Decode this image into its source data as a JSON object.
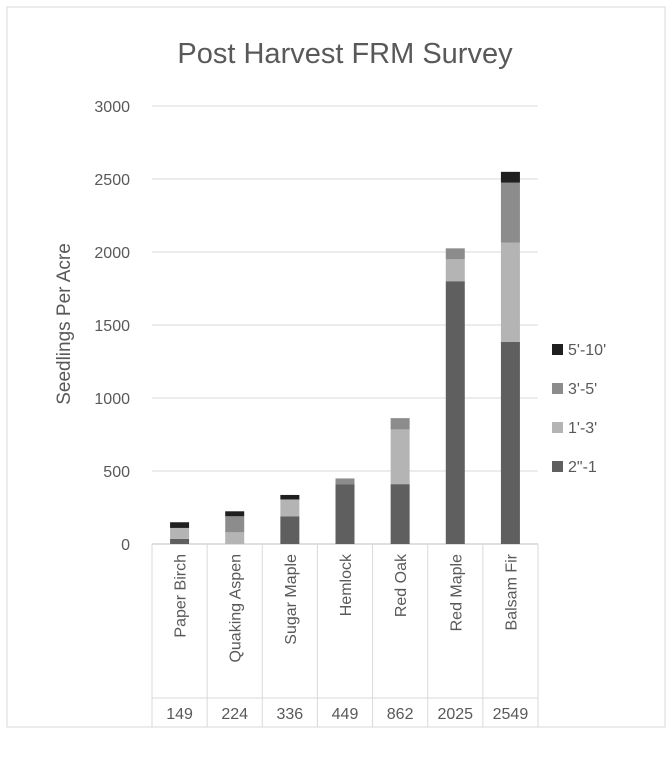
{
  "chart_data": {
    "type": "bar",
    "stacked": true,
    "title": "Post Harvest FRM Survey",
    "xlabel": "",
    "ylabel": "Seedlings Per Acre",
    "ylim": [
      0,
      3000
    ],
    "yticks": [
      0,
      500,
      1000,
      1500,
      2000,
      2500,
      3000
    ],
    "grid": true,
    "legend_position": "right",
    "categories": [
      "Paper Birch",
      "Quaking Aspen",
      "Sugar Maple",
      "Hemlock",
      "Red Oak",
      "Red Maple",
      "Balsam Fir"
    ],
    "totals": [
      149,
      224,
      336,
      449,
      862,
      2025,
      2549
    ],
    "series": [
      {
        "name": "2\"-1",
        "color": "#5f5f5f",
        "values": [
          35,
          0,
          190,
          410,
          410,
          1800,
          1385
        ]
      },
      {
        "name": "1'-3'",
        "color": "#b4b4b4",
        "values": [
          75,
          80,
          115,
          0,
          375,
          150,
          680
        ]
      },
      {
        "name": "3'-5'",
        "color": "#8c8c8c",
        "values": [
          0,
          110,
          0,
          39,
          77,
          75,
          410
        ]
      },
      {
        "name": "5'-10'",
        "color": "#1f1f1f",
        "values": [
          39,
          34,
          31,
          0,
          0,
          0,
          74
        ]
      }
    ]
  }
}
